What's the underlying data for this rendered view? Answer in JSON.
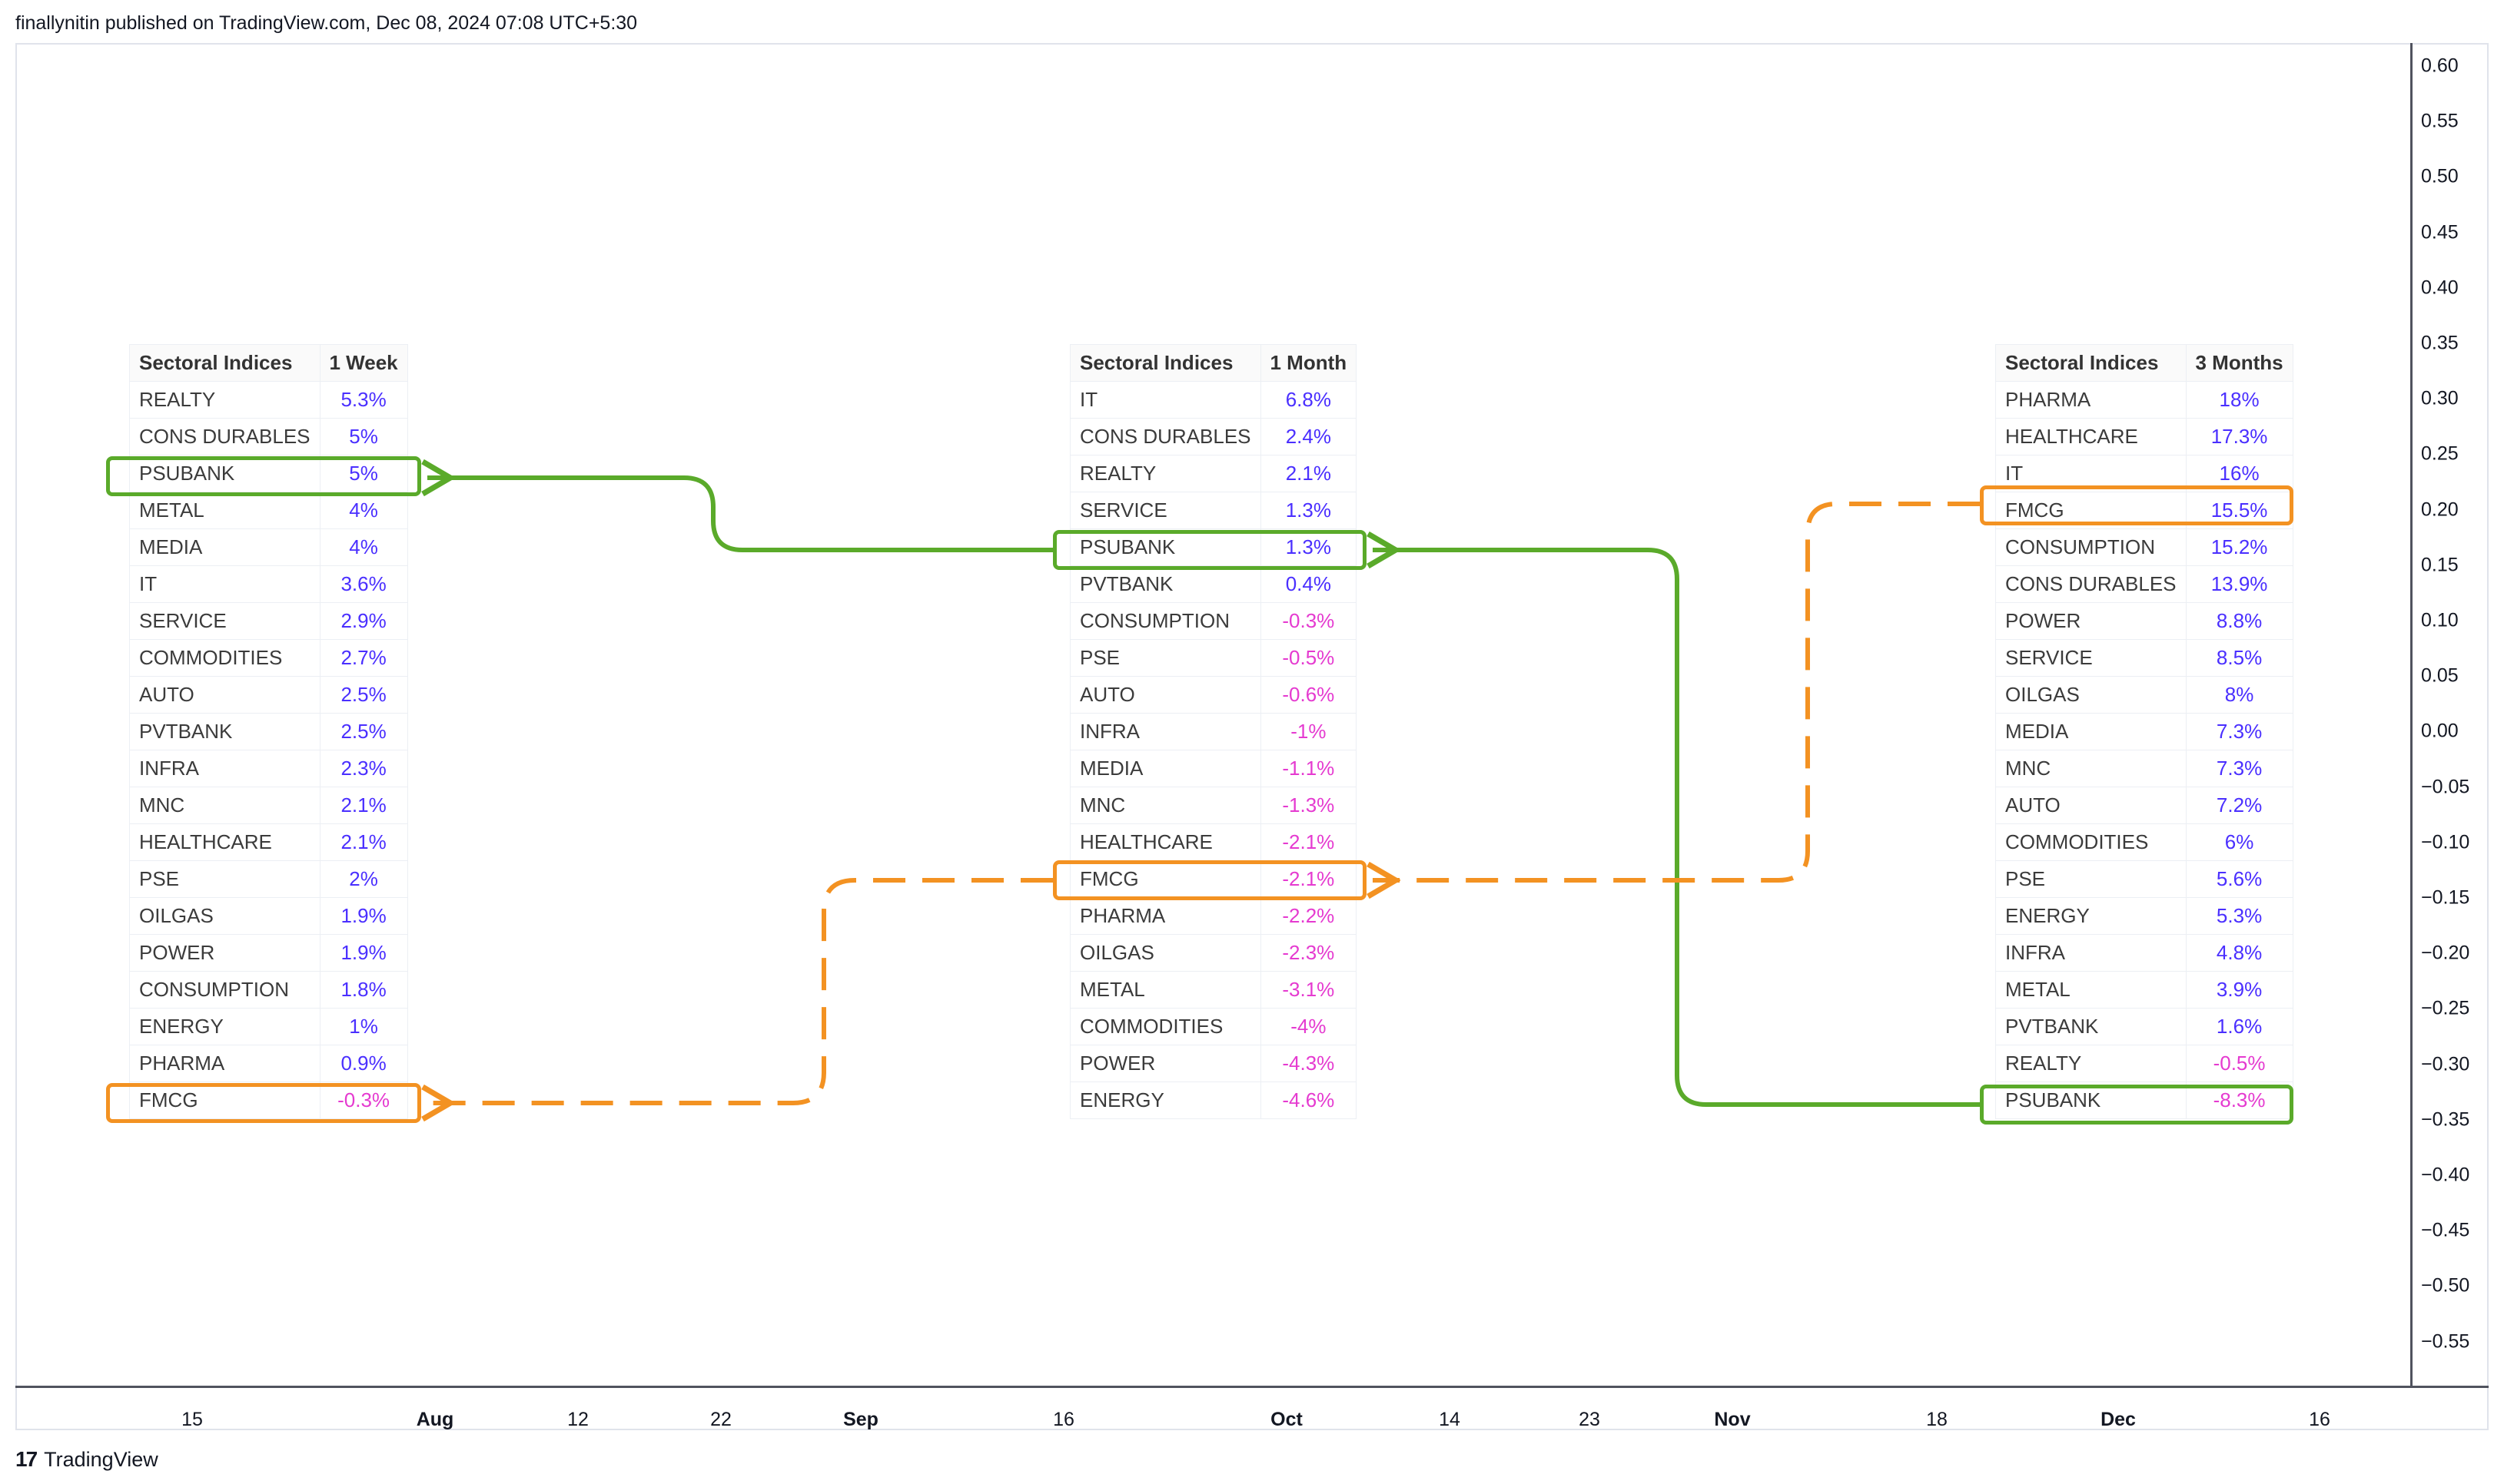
{
  "publisher": "finallynitin published on TradingView.com, Dec 08, 2024 07:08 UTC+5:30",
  "footer": {
    "logo_glyph": "17",
    "brand": "TradingView"
  },
  "price_axis": [
    "0.60",
    "0.55",
    "0.50",
    "0.45",
    "0.40",
    "0.35",
    "0.30",
    "0.25",
    "0.20",
    "0.15",
    "0.10",
    "0.05",
    "0.00",
    "−0.05",
    "−0.10",
    "−0.15",
    "−0.20",
    "−0.25",
    "−0.30",
    "−0.35",
    "−0.40",
    "−0.45",
    "−0.50",
    "−0.55"
  ],
  "time_axis": [
    {
      "label": "15",
      "bold": false
    },
    {
      "label": "Aug",
      "bold": true
    },
    {
      "label": "12",
      "bold": false
    },
    {
      "label": "22",
      "bold": false
    },
    {
      "label": "Sep",
      "bold": true
    },
    {
      "label": "16",
      "bold": false
    },
    {
      "label": "Oct",
      "bold": true
    },
    {
      "label": "14",
      "bold": false
    },
    {
      "label": "23",
      "bold": false
    },
    {
      "label": "Nov",
      "bold": true
    },
    {
      "label": "18",
      "bold": false
    },
    {
      "label": "Dec",
      "bold": true
    },
    {
      "label": "16",
      "bold": false
    }
  ],
  "colors": {
    "positive": "#4a2fff",
    "negative": "#e53ad0",
    "psubank_highlight": "#5aaa2a",
    "fmcg_highlight": "#f39222"
  },
  "tables": [
    {
      "header": [
        "Sectoral Indices",
        "1 Week"
      ],
      "rows": [
        [
          "REALTY",
          "5.3%"
        ],
        [
          "CONS DURABLES",
          "5%"
        ],
        [
          "PSUBANK",
          "5%"
        ],
        [
          "METAL",
          "4%"
        ],
        [
          "MEDIA",
          "4%"
        ],
        [
          "IT",
          "3.6%"
        ],
        [
          "SERVICE",
          "2.9%"
        ],
        [
          "COMMODITIES",
          "2.7%"
        ],
        [
          "AUTO",
          "2.5%"
        ],
        [
          "PVTBANK",
          "2.5%"
        ],
        [
          "INFRA",
          "2.3%"
        ],
        [
          "MNC",
          "2.1%"
        ],
        [
          "HEALTHCARE",
          "2.1%"
        ],
        [
          "PSE",
          "2%"
        ],
        [
          "OILGAS",
          "1.9%"
        ],
        [
          "POWER",
          "1.9%"
        ],
        [
          "CONSUMPTION",
          "1.8%"
        ],
        [
          "ENERGY",
          "1%"
        ],
        [
          "PHARMA",
          "0.9%"
        ],
        [
          "FMCG",
          "-0.3%"
        ]
      ]
    },
    {
      "header": [
        "Sectoral Indices",
        "1 Month"
      ],
      "rows": [
        [
          "IT",
          "6.8%"
        ],
        [
          "CONS DURABLES",
          "2.4%"
        ],
        [
          "REALTY",
          "2.1%"
        ],
        [
          "SERVICE",
          "1.3%"
        ],
        [
          "PSUBANK",
          "1.3%"
        ],
        [
          "PVTBANK",
          "0.4%"
        ],
        [
          "CONSUMPTION",
          "-0.3%"
        ],
        [
          "PSE",
          "-0.5%"
        ],
        [
          "AUTO",
          "-0.6%"
        ],
        [
          "INFRA",
          "-1%"
        ],
        [
          "MEDIA",
          "-1.1%"
        ],
        [
          "MNC",
          "-1.3%"
        ],
        [
          "HEALTHCARE",
          "-2.1%"
        ],
        [
          "FMCG",
          "-2.1%"
        ],
        [
          "PHARMA",
          "-2.2%"
        ],
        [
          "OILGAS",
          "-2.3%"
        ],
        [
          "METAL",
          "-3.1%"
        ],
        [
          "COMMODITIES",
          "-4%"
        ],
        [
          "POWER",
          "-4.3%"
        ],
        [
          "ENERGY",
          "-4.6%"
        ]
      ]
    },
    {
      "header": [
        "Sectoral Indices",
        "3 Months"
      ],
      "rows": [
        [
          "PHARMA",
          "18%"
        ],
        [
          "HEALTHCARE",
          "17.3%"
        ],
        [
          "IT",
          "16%"
        ],
        [
          "FMCG",
          "15.5%"
        ],
        [
          "CONSUMPTION",
          "15.2%"
        ],
        [
          "CONS DURABLES",
          "13.9%"
        ],
        [
          "POWER",
          "8.8%"
        ],
        [
          "SERVICE",
          "8.5%"
        ],
        [
          "OILGAS",
          "8%"
        ],
        [
          "MEDIA",
          "7.3%"
        ],
        [
          "MNC",
          "7.3%"
        ],
        [
          "AUTO",
          "7.2%"
        ],
        [
          "COMMODITIES",
          "6%"
        ],
        [
          "PSE",
          "5.6%"
        ],
        [
          "ENERGY",
          "5.3%"
        ],
        [
          "INFRA",
          "4.8%"
        ],
        [
          "METAL",
          "3.9%"
        ],
        [
          "PVTBANK",
          "1.6%"
        ],
        [
          "REALTY",
          "-0.5%"
        ],
        [
          "PSUBANK",
          "-8.3%"
        ]
      ]
    }
  ]
}
